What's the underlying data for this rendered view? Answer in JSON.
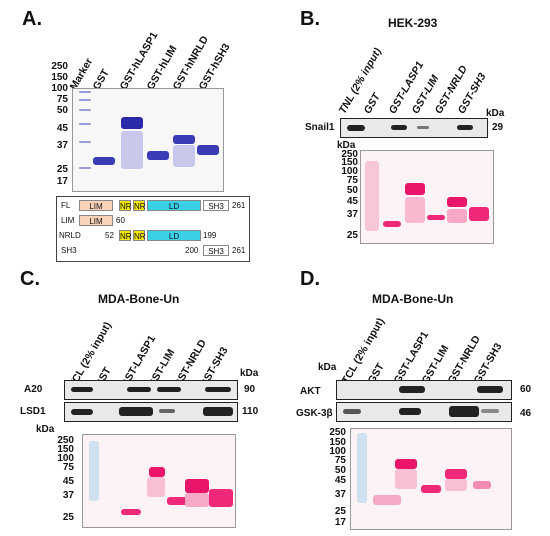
{
  "panelA": {
    "label": "A.",
    "lanes": [
      "Marker",
      "GST",
      "GST-hLASP1",
      "GST-hLIM",
      "GST-hNRLD",
      "GST-hSH3"
    ],
    "mw": [
      "250",
      "150",
      "100",
      "75",
      "50",
      "45",
      "37",
      "25",
      "17"
    ],
    "domains": {
      "rows": [
        {
          "name": "FL",
          "end": "261",
          "segments": [
            "LIM",
            "NR",
            "NR",
            "LD",
            "SH3"
          ]
        },
        {
          "name": "LIM",
          "end": "60",
          "segments": [
            "LIM"
          ]
        },
        {
          "name": "NRLD",
          "start": "52",
          "end": "199",
          "segments": [
            "NR",
            "NR",
            "LD"
          ]
        },
        {
          "name": "SH3",
          "start": "200",
          "end": "261",
          "segments": [
            "SH3"
          ]
        }
      ],
      "colors": {
        "LIM": "#f9d2b8",
        "NR": "#f2e600",
        "LD": "#3ad1e6",
        "SH3": "#ffffff"
      }
    }
  },
  "panelB": {
    "label": "B.",
    "title": "HEK-293",
    "lanes": [
      "TNL (2% input)",
      "GST",
      "GST-LASP1",
      "GST-LIM",
      "GST-NRLD",
      "GST-SH3"
    ],
    "kda": "kDa",
    "blots": [
      {
        "name": "Snail1",
        "size": "29"
      }
    ],
    "mw_kda": "kDa",
    "mw": [
      "250",
      "150",
      "100",
      "75",
      "50",
      "45",
      "37",
      "25"
    ]
  },
  "panelC": {
    "label": "C.",
    "title": "MDA-Bone-Un",
    "lanes": [
      "TCL (2% input)",
      "GST",
      "GST-LASP1",
      "GST-LIM",
      "GST-NRLD",
      "GST-SH3"
    ],
    "kda": "kDa",
    "blots": [
      {
        "name": "A20",
        "size": "90"
      },
      {
        "name": "LSD1",
        "size": "110"
      }
    ],
    "mw_kda": "kDa",
    "mw": [
      "250",
      "150",
      "100",
      "75",
      "45",
      "37",
      "25"
    ]
  },
  "panelD": {
    "label": "D.",
    "title": "MDA-Bone-Un",
    "lanes": [
      "TCL (2% input)",
      "GST",
      "GST-LASP1",
      "GST-LIM",
      "GST-NRLD",
      "GST-SH3"
    ],
    "kda": "kDa",
    "blots": [
      {
        "name": "AKT",
        "size": "60"
      },
      {
        "name": "GSK-3β",
        "size": "46"
      }
    ],
    "mw_kda": "kDa",
    "mw": [
      "250",
      "150",
      "100",
      "75",
      "50",
      "45",
      "37",
      "25",
      "17"
    ]
  },
  "colors": {
    "coomassie": "#3b3bb5",
    "ponceau": "#f0287a",
    "blot_band": "#222222"
  }
}
